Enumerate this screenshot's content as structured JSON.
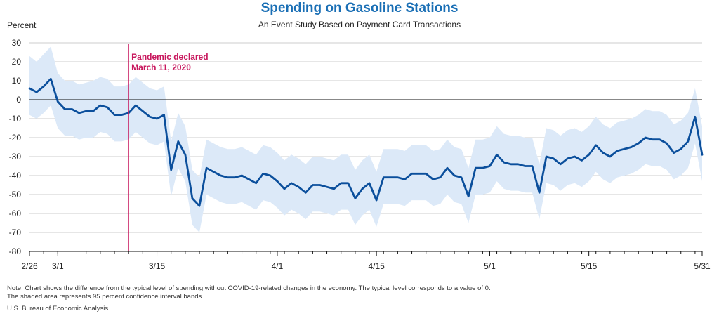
{
  "chart_data": {
    "type": "line",
    "title": "Spending on Gasoline Stations",
    "subtitle": "An Event Study Based on Payment Card Transactions",
    "ylabel": "Percent",
    "ylim": [
      -80,
      30
    ],
    "yticks": [
      30,
      20,
      10,
      0,
      -10,
      -20,
      -30,
      -40,
      -50,
      -60,
      -70,
      -80
    ],
    "xlim": [
      "2020-02-26",
      "2020-05-31"
    ],
    "xticks": [
      {
        "date": "2020-02-26",
        "label": "2/26"
      },
      {
        "date": "2020-03-01",
        "label": "3/1"
      },
      {
        "date": "2020-03-15",
        "label": "3/15"
      },
      {
        "date": "2020-04-01",
        "label": "4/1"
      },
      {
        "date": "2020-04-15",
        "label": "4/15"
      },
      {
        "date": "2020-05-01",
        "label": "5/1"
      },
      {
        "date": "2020-05-15",
        "label": "5/15"
      },
      {
        "date": "2020-05-31",
        "label": "5/31"
      }
    ],
    "grid": true,
    "colors": {
      "line": "#0b4f9c",
      "band": "#dce9f8",
      "annotation": "#c8175d",
      "grid": "#cccccc"
    },
    "annotation": {
      "date": "2020-03-11",
      "line1": "Pandemic declared",
      "line2": "March 11, 2020"
    },
    "series": [
      {
        "start_date": "2020-02-26",
        "values": [
          6,
          4,
          7,
          11,
          -1,
          -5,
          -5,
          -7,
          -6,
          -6,
          -3,
          -4,
          -8,
          -8,
          -7,
          -3,
          -6,
          -9,
          -10,
          -8,
          -37,
          -22,
          -29,
          -52,
          -56,
          -36,
          -38,
          -40,
          -41,
          -41,
          -40,
          -42,
          -44,
          -39,
          -40,
          -43,
          -47,
          -44,
          -46,
          -49,
          -45,
          -45,
          -46,
          -47,
          -44,
          -44,
          -52,
          -47,
          -44,
          -53,
          -41,
          -41,
          -41,
          -42,
          -39,
          -39,
          -39,
          -42,
          -41,
          -36,
          -40,
          -41,
          -51,
          -36,
          -36,
          -35,
          -29,
          -33,
          -34,
          -34,
          -35,
          -35,
          -49,
          -30,
          -31,
          -34,
          -31,
          -30,
          -32,
          -29,
          -24,
          -28,
          -30,
          -27,
          -26,
          -25,
          -23,
          -20,
          -21,
          -21,
          -23,
          -28,
          -26,
          -22,
          -9,
          -29
        ],
        "upper": [
          23,
          20,
          24,
          28,
          14,
          10,
          10,
          8,
          9,
          10,
          12,
          11,
          7,
          7,
          8,
          12,
          9,
          6,
          5,
          7,
          -22,
          -7,
          -14,
          -37,
          -41,
          -21,
          -23,
          -25,
          -26,
          -26,
          -25,
          -27,
          -29,
          -24,
          -25,
          -28,
          -32,
          -29,
          -31,
          -34,
          -30,
          -30,
          -31,
          -32,
          -29,
          -29,
          -37,
          -32,
          -29,
          -38,
          -26,
          -26,
          -26,
          -27,
          -24,
          -24,
          -24,
          -27,
          -26,
          -21,
          -25,
          -26,
          -36,
          -21,
          -21,
          -20,
          -14,
          -18,
          -19,
          -19,
          -20,
          -20,
          -34,
          -15,
          -16,
          -19,
          -16,
          -15,
          -17,
          -14,
          -9,
          -13,
          -15,
          -12,
          -11,
          -10,
          -8,
          -5,
          -6,
          -6,
          -8,
          -13,
          -11,
          -7,
          6,
          -14
        ],
        "lower": [
          -8,
          -10,
          -7,
          -3,
          -15,
          -19,
          -19,
          -21,
          -20,
          -20,
          -17,
          -18,
          -22,
          -22,
          -21,
          -17,
          -20,
          -23,
          -24,
          -22,
          -51,
          -36,
          -43,
          -66,
          -70,
          -50,
          -52,
          -54,
          -55,
          -55,
          -54,
          -56,
          -58,
          -53,
          -54,
          -57,
          -61,
          -58,
          -60,
          -63,
          -59,
          -59,
          -60,
          -61,
          -58,
          -58,
          -66,
          -61,
          -58,
          -67,
          -55,
          -55,
          -55,
          -56,
          -53,
          -53,
          -53,
          -56,
          -55,
          -50,
          -54,
          -55,
          -65,
          -50,
          -50,
          -49,
          -43,
          -47,
          -48,
          -48,
          -49,
          -49,
          -63,
          -44,
          -45,
          -48,
          -45,
          -44,
          -46,
          -43,
          -38,
          -42,
          -44,
          -41,
          -40,
          -39,
          -37,
          -34,
          -35,
          -35,
          -37,
          -42,
          -40,
          -36,
          -23,
          -43
        ]
      }
    ]
  },
  "notes": {
    "line1": "Note: Chart shows the difference from the typical level of spending without COVID-19-related changes in the economy. The typical level corresponds to a value of 0.",
    "line2": "The shaded area represents 95 percent confidence interval bands.",
    "source": "U.S. Bureau of Economic Analysis"
  }
}
